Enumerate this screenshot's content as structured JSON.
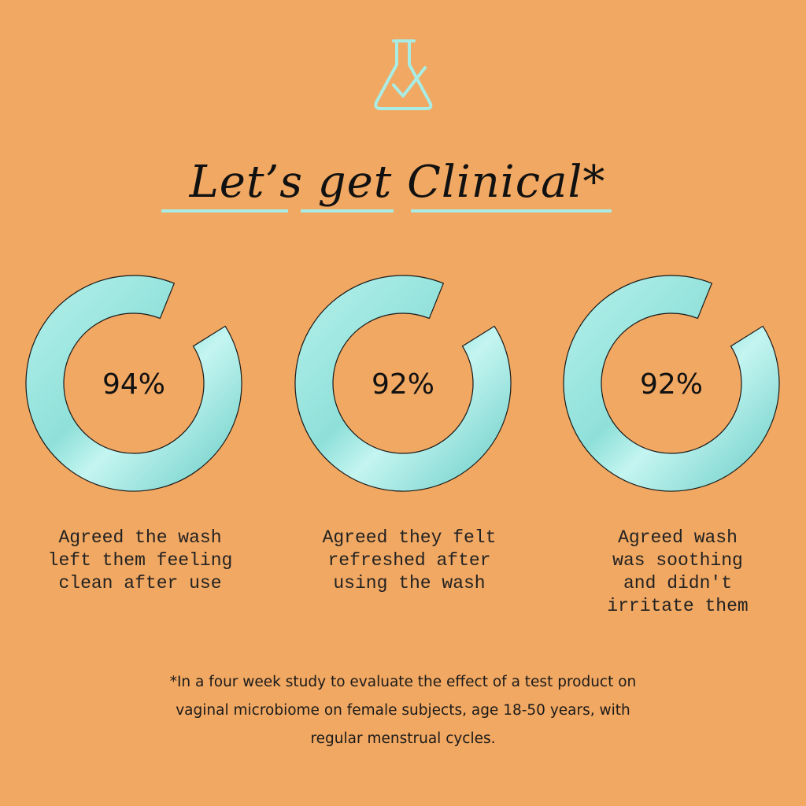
{
  "title": "Let’s get Clinical*",
  "stats": [
    {
      "value": "94%",
      "caption": [
        "Agreed the wash",
        "left them feeling",
        "clean after use"
      ]
    },
    {
      "value": "92%",
      "caption": [
        "Agreed they felt",
        "refreshed after",
        "using the wash"
      ]
    },
    {
      "value": "92%",
      "caption": [
        "Agreed wash",
        "was soothing",
        "and didn't",
        "irritate them"
      ]
    }
  ],
  "footnote": [
    "*In a four week study to evaluate the effect of a test product on",
    "vaginal microbiome on female subjects, age 18-50 years, with",
    "regular menstrual cycles."
  ]
}
